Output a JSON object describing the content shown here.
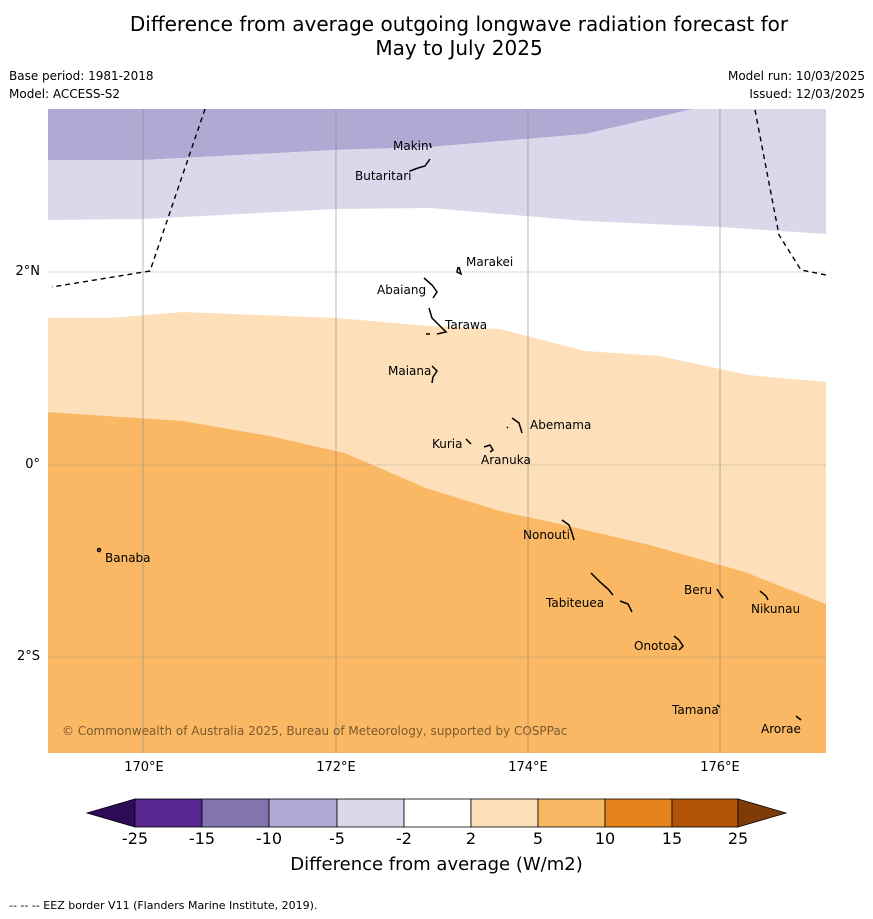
{
  "title_line1": "Difference from average outgoing longwave radiation forecast for",
  "title_line2": "May to July 2025",
  "base_period": "Base period: 1981-2018",
  "model": "Model: ACCESS-S2",
  "model_run": "Model run: 10/03/2025",
  "issued": "Issued: 12/03/2025",
  "lat_labels": [
    "2°N",
    "0°",
    "2°S"
  ],
  "lon_labels": [
    "170°E",
    "172°E",
    "174°E",
    "176°E"
  ],
  "places": [
    "Makin",
    "Butaritari",
    "Marakei",
    "Abaiang",
    "Tarawa",
    "Maiana",
    "Abemama",
    "Kuria",
    "Aranuka",
    "Nonouti",
    "Banaba",
    "Beru",
    "Tabiteuea",
    "Nikunau",
    "Onotoa",
    "Tamana",
    "Arorae"
  ],
  "copyright": "© Commonwealth of Australia 2025, Bureau of Meteorology, supported by COSPPac",
  "colorbar": {
    "ticks": [
      "-25",
      "-15",
      "-10",
      "-5",
      "-2",
      "2",
      "5",
      "10",
      "15",
      "25"
    ],
    "colors": [
      "#2d0b57",
      "#5a2790",
      "#8374b0",
      "#b1a9d3",
      "#d9d9eb",
      "#ffffff",
      "#fde0b9",
      "#fbb864",
      "#e5841a",
      "#b25406",
      "#7f3b08"
    ],
    "label": "Difference from average (W/m2)"
  },
  "footer": "--  --  -- EEZ border V11 (Flanders Marine Institute, 2019)."
}
